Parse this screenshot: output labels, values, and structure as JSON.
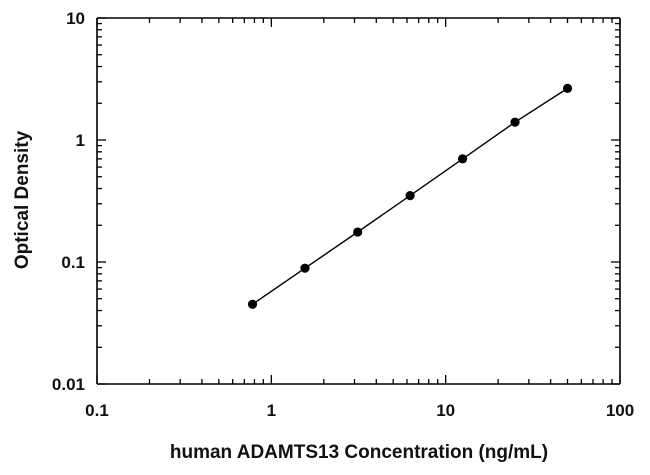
{
  "chart_data": {
    "type": "scatter",
    "title": "",
    "xlabel": "human ADAMTS13 Concentration (ng/mL)",
    "ylabel": "Optical Density",
    "xscale": "log",
    "yscale": "log",
    "xlim": [
      0.1,
      100
    ],
    "ylim": [
      0.01,
      10
    ],
    "x_tick_labels": [
      "0.1",
      "1",
      "10",
      "100"
    ],
    "y_tick_labels": [
      "0.01",
      "0.1",
      "1",
      "10"
    ],
    "grid": false,
    "legend": "none",
    "series": [
      {
        "x": [
          0.78,
          1.56,
          3.13,
          6.25,
          12.5,
          25,
          50
        ],
        "y": [
          0.045,
          0.089,
          0.176,
          0.35,
          0.7,
          1.4,
          2.65
        ]
      }
    ],
    "fit_line": true,
    "colors": {
      "marker": "#000000",
      "line": "#000000",
      "axis": "#000000"
    }
  }
}
